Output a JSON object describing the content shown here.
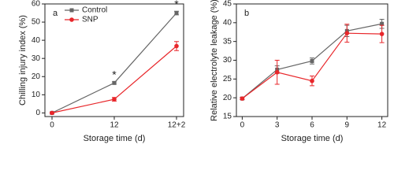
{
  "chart_data": [
    {
      "type": "line",
      "panel_label": "a",
      "x_label": "Storage time (d)",
      "y_label": "Chilling injury index (%)",
      "categories": [
        "0",
        "12",
        "12+2"
      ],
      "series": [
        {
          "name": "Control",
          "color": "#666666",
          "marker": "square",
          "values": [
            0,
            16.5,
            55
          ],
          "errors": [
            0.4,
            0.6,
            1
          ]
        },
        {
          "name": "SNP",
          "color": "#e8262a",
          "marker": "circle",
          "values": [
            0,
            7.5,
            36.8
          ],
          "errors": [
            0.4,
            1,
            2.5
          ]
        }
      ],
      "annotations": [
        "*",
        "*"
      ],
      "ylim": [
        -2,
        60
      ],
      "yticks": [
        0,
        10,
        20,
        30,
        40,
        50,
        60
      ],
      "legend": "upper left"
    },
    {
      "type": "line",
      "panel_label": "b",
      "x_label": "Storage time (d)",
      "y_label": "Relative electrolyte leakage (%)",
      "x": [
        0,
        3,
        6,
        9,
        12
      ],
      "xlim": [
        -0.5,
        12.5
      ],
      "xticks": [
        0,
        3,
        6,
        9,
        12
      ],
      "series": [
        {
          "name": "Control",
          "color": "#666666",
          "marker": "square",
          "values": [
            19.8,
            27.5,
            29.8,
            37.8,
            39.7
          ],
          "errors": [
            0.3,
            1,
            0.8,
            1.5,
            1.2
          ]
        },
        {
          "name": "SNP",
          "color": "#e8262a",
          "marker": "circle",
          "values": [
            19.8,
            26.8,
            24.5,
            37.2,
            37.0
          ],
          "errors": [
            0.3,
            3.2,
            1.3,
            2.4,
            2.3
          ]
        }
      ],
      "ylim": [
        15,
        45
      ],
      "yticks": [
        15,
        20,
        25,
        30,
        35,
        40,
        45
      ]
    }
  ]
}
